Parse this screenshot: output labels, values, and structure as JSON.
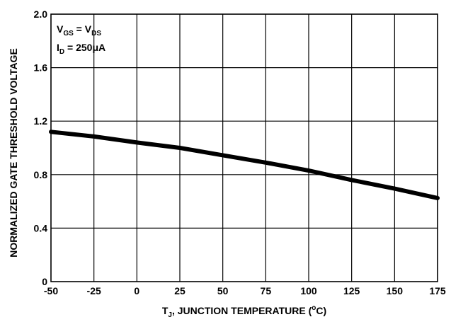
{
  "chart_data": {
    "type": "line",
    "xlabel": {
      "prefix": "T",
      "sub": "J",
      "main": ", JUNCTION TEMPERATURE (",
      "sup": "o",
      "suffix": "C)"
    },
    "ylabel": "NORMALIZED GATE THRESHOLD VOLTAGE",
    "xlim": [
      -50,
      175
    ],
    "ylim": [
      0,
      2.0
    ],
    "x_ticks": [
      "-50",
      "-25",
      "0",
      "25",
      "50",
      "75",
      "100",
      "125",
      "150",
      "175"
    ],
    "y_ticks": [
      "0",
      "0.4",
      "0.8",
      "1.2",
      "1.6",
      "2.0"
    ],
    "grid": true,
    "annotation": {
      "line1": {
        "a": "V",
        "a_sub": "GS",
        "eq": " = V",
        "b_sub": "DS"
      },
      "line2": {
        "a": "I",
        "a_sub": "D",
        "rest": " = 250μA"
      }
    },
    "series": [
      {
        "x": [
          -50,
          -25,
          0,
          25,
          50,
          75,
          100,
          125,
          150,
          175
        ],
        "y": [
          1.12,
          1.085,
          1.04,
          1.0,
          0.945,
          0.89,
          0.83,
          0.76,
          0.695,
          0.625
        ]
      }
    ]
  }
}
